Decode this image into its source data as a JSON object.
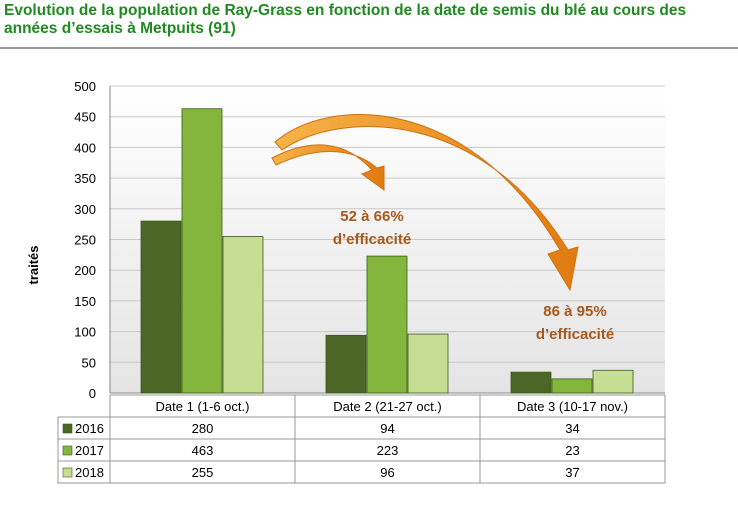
{
  "title_line1": "Evolution de la population de Ray-Grass en fonction de la date de semis du blé au cours des",
  "title_line2": "années d’essais à Metpuits (91)",
  "chart_data": {
    "type": "bar",
    "title": "Evolution de la population de Ray-Grass en fonction de la date de semis du blé au cours des années d’essais à Metpuits (91)",
    "ylabel": "traités",
    "xlabel": "",
    "ylim": [
      0,
      500
    ],
    "yticks": [
      0,
      50,
      100,
      150,
      200,
      250,
      300,
      350,
      400,
      450,
      500
    ],
    "grid": true,
    "categories": [
      "Date 1 (1-6 oct.)",
      "Date 2 (21-27 oct.)",
      "Date 3 (10-17 nov.)"
    ],
    "series": [
      {
        "name": "2016",
        "values": [
          280,
          94,
          34
        ],
        "color": "#4b6626"
      },
      {
        "name": "2017",
        "values": [
          463,
          223,
          23
        ],
        "color": "#84b53c"
      },
      {
        "name": "2018",
        "values": [
          255,
          96,
          37
        ],
        "color": "#c6dd94"
      }
    ],
    "annotations": [
      {
        "line1": "52 à 66%",
        "line2": "d’efficacité"
      },
      {
        "line1": "86 à 95%",
        "line2": "d’efficacité"
      }
    ],
    "legend": "data-table"
  }
}
